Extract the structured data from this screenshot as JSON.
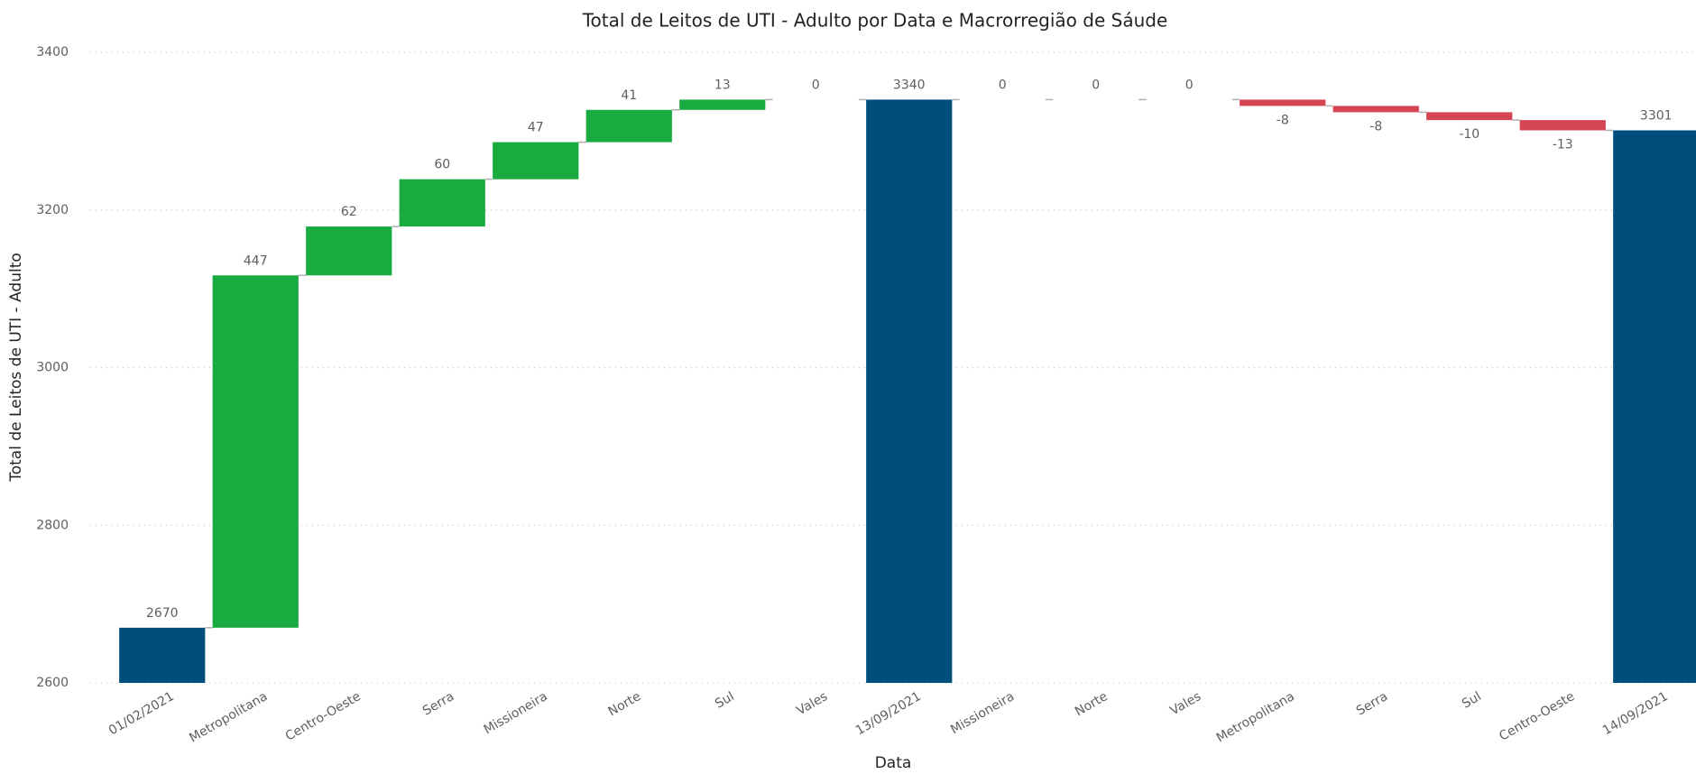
{
  "chart_data": {
    "type": "waterfall",
    "title": "Total de Leitos de UTI - Adulto por Data e Macrorregião de Sáude",
    "x_label": "Data",
    "y_label": "Total de Leitos de UTI - Adulto",
    "categories": [
      "01/02/2021",
      "Metropolitana",
      "Centro-Oeste",
      "Serra",
      "Missioneira",
      "Norte",
      "Sul",
      "Vales",
      "13/09/2021",
      "Missioneira",
      "Norte",
      "Vales",
      "Metropolitana",
      "Serra",
      "Sul",
      "Centro-Oeste",
      "14/09/2021"
    ],
    "values": [
      2670,
      447,
      62,
      60,
      47,
      41,
      13,
      0,
      3340,
      0,
      0,
      0,
      -8,
      -8,
      -10,
      -13,
      3301
    ],
    "is_total": [
      true,
      false,
      false,
      false,
      false,
      false,
      false,
      false,
      true,
      false,
      false,
      false,
      false,
      false,
      false,
      false,
      true
    ],
    "colors": {
      "increase": "#1aab40",
      "decrease": "#d64554",
      "total": "#004e7c"
    },
    "ylim": [
      2600,
      3400
    ],
    "yticks": [
      2600,
      2800,
      3000,
      3200,
      3400
    ],
    "grid": true
  }
}
